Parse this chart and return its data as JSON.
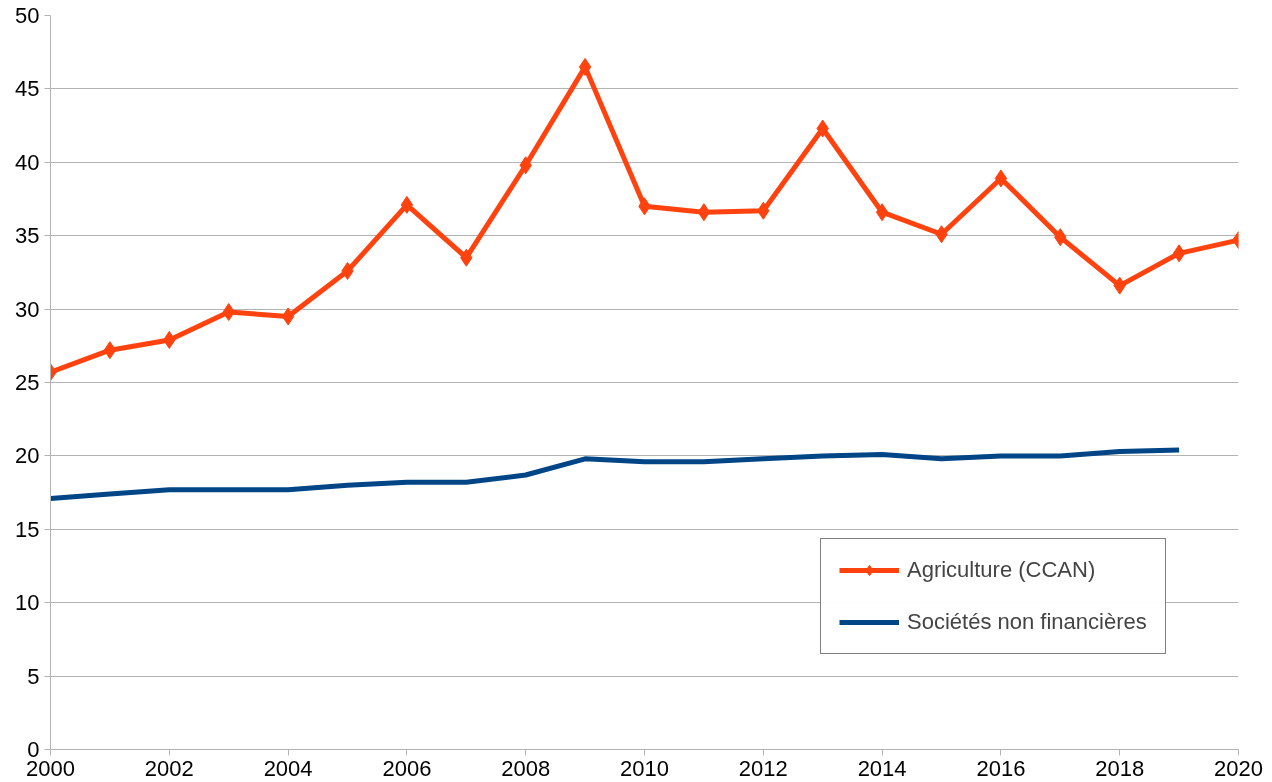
{
  "chart_data": {
    "type": "line",
    "x": [
      2000,
      2001,
      2002,
      2003,
      2004,
      2005,
      2006,
      2007,
      2008,
      2009,
      2010,
      2011,
      2012,
      2013,
      2014,
      2015,
      2016,
      2017,
      2018,
      2019,
      2020
    ],
    "series": [
      {
        "name": "Agriculture (CCAN)",
        "color": "#ff420e",
        "marker": "diamond",
        "values": [
          25.7,
          27.2,
          27.9,
          29.8,
          29.5,
          32.6,
          37.1,
          33.5,
          39.8,
          46.5,
          37.0,
          36.6,
          36.7,
          42.3,
          36.6,
          35.1,
          38.9,
          34.9,
          31.6,
          33.8,
          34.7
        ]
      },
      {
        "name": "Sociétés non financières",
        "color": "#004586",
        "marker": "none",
        "values": [
          17.1,
          17.4,
          17.7,
          17.7,
          17.7,
          18.0,
          18.2,
          18.2,
          18.7,
          19.8,
          19.6,
          19.6,
          19.8,
          20.0,
          20.1,
          19.8,
          20.0,
          20.0,
          20.3,
          20.4,
          null
        ]
      }
    ],
    "xlim": [
      2000,
      2020
    ],
    "xticks": [
      2000,
      2002,
      2004,
      2006,
      2008,
      2010,
      2012,
      2014,
      2016,
      2018,
      2020
    ],
    "ylim": [
      0,
      50
    ],
    "yticks": [
      0,
      5,
      10,
      15,
      20,
      25,
      30,
      35,
      40,
      45,
      50
    ],
    "grid": "y",
    "legend": "bottom right",
    "line_style": "solid"
  }
}
